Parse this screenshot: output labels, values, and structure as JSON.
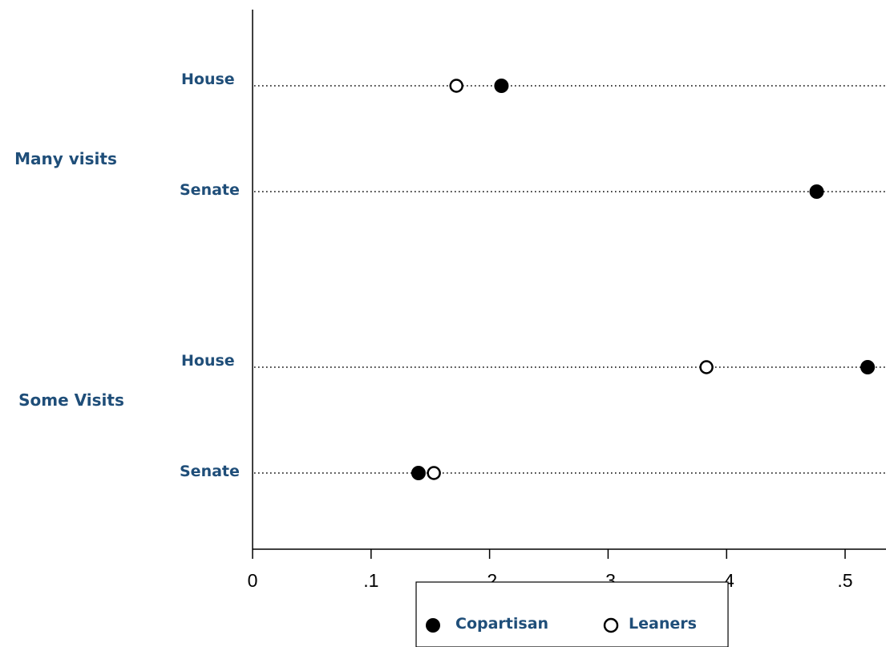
{
  "chart_data": {
    "type": "dot",
    "x_axis": {
      "range": [
        0,
        0.535
      ],
      "ticks": [
        {
          "value": 0,
          "label": "0"
        },
        {
          "value": 0.1,
          "label": ".1"
        },
        {
          "value": 0.2,
          "label": ".2"
        },
        {
          "value": 0.3,
          "label": ".3"
        },
        {
          "value": 0.4,
          "label": ".4"
        },
        {
          "value": 0.5,
          "label": ".5"
        }
      ]
    },
    "groups": [
      {
        "label": "Many visits",
        "rows": [
          {
            "label": "House",
            "values": {
              "Copartisan": 0.21,
              "Leaners": 0.172
            }
          },
          {
            "label": "Senate",
            "values": {
              "Copartisan": 0.476
            }
          }
        ]
      },
      {
        "label": "Some Visits",
        "rows": [
          {
            "label": "House",
            "values": {
              "Copartisan": 0.519,
              "Leaners": 0.383
            }
          },
          {
            "label": "Senate",
            "values": {
              "Copartisan": 0.14,
              "Leaners": 0.153
            }
          }
        ]
      }
    ],
    "series": [
      {
        "name": "Copartisan",
        "marker": "filled-circle",
        "color": "#000000"
      },
      {
        "name": "Leaners",
        "marker": "hollow-circle",
        "color": "#000000"
      }
    ],
    "legend_position": "bottom-center",
    "grid": false,
    "label_color": "#1f4e79"
  }
}
